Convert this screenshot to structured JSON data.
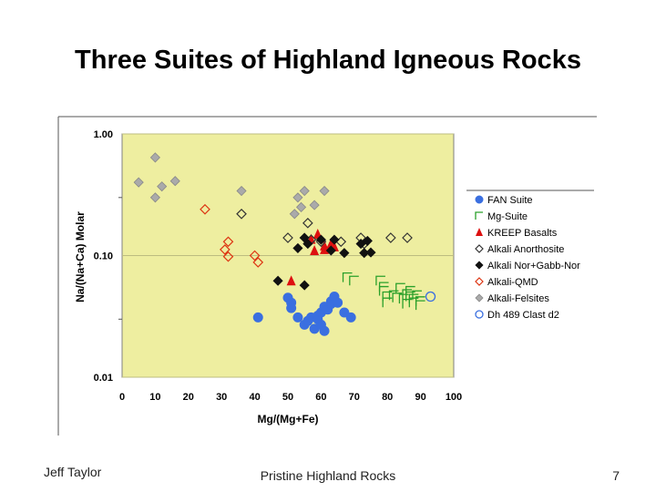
{
  "slide": {
    "title": "Three Suites of Highland Igneous Rocks",
    "footer_left": "Jeff Taylor",
    "footer_center": "Pristine Highland Rocks",
    "page_number": "7"
  },
  "chart_data": {
    "type": "scatter",
    "xlabel": "Mg/(Mg+Fe)",
    "ylabel": "Na/(Na+Ca) Molar",
    "xlim": [
      0,
      100
    ],
    "ylim": [
      0.01,
      1.0
    ],
    "yscale": "log",
    "x_ticks": [
      "0",
      "10",
      "20",
      "30",
      "40",
      "50",
      "60",
      "70",
      "80",
      "90",
      "100"
    ],
    "y_ticks": [
      {
        "value": 1.0,
        "label": "1.00"
      },
      {
        "value": 0.1,
        "label": "0.10"
      },
      {
        "value": 0.01,
        "label": "0.01"
      }
    ],
    "plot_background": "#eeeea0",
    "legend_position": "right",
    "series": [
      {
        "name": "FAN Suite",
        "marker": "circle-filled",
        "color": "#3a6fe0",
        "points": [
          [
            41,
            0.031
          ],
          [
            50,
            0.045
          ],
          [
            51,
            0.041
          ],
          [
            51,
            0.037
          ],
          [
            53,
            0.031
          ],
          [
            55,
            0.027
          ],
          [
            56,
            0.029
          ],
          [
            57,
            0.031
          ],
          [
            58,
            0.025
          ],
          [
            59,
            0.032
          ],
          [
            59,
            0.03
          ],
          [
            60,
            0.034
          ],
          [
            60,
            0.027
          ],
          [
            61,
            0.038
          ],
          [
            62,
            0.036
          ],
          [
            63,
            0.042
          ],
          [
            63,
            0.04
          ],
          [
            64,
            0.046
          ],
          [
            65,
            0.041
          ],
          [
            67,
            0.034
          ],
          [
            69,
            0.031
          ],
          [
            61,
            0.024
          ]
        ]
      },
      {
        "name": "Mg-Suite",
        "marker": "corner-open",
        "color": "#2aa02a",
        "points": [
          [
            68,
            0.066
          ],
          [
            70,
            0.062
          ],
          [
            78,
            0.062
          ],
          [
            79,
            0.055
          ],
          [
            79,
            0.051
          ],
          [
            80,
            0.046
          ],
          [
            80,
            0.041
          ],
          [
            82,
            0.047
          ],
          [
            83,
            0.045
          ],
          [
            84,
            0.054
          ],
          [
            85,
            0.044
          ],
          [
            86,
            0.048
          ],
          [
            86,
            0.04
          ],
          [
            87,
            0.051
          ],
          [
            87,
            0.046
          ],
          [
            88,
            0.044
          ],
          [
            88,
            0.041
          ],
          [
            89,
            0.047
          ],
          [
            90,
            0.042
          ],
          [
            90,
            0.039
          ]
        ]
      },
      {
        "name": "KREEP Basalts",
        "marker": "triangle-filled",
        "color": "#dd1010",
        "points": [
          [
            51,
            0.062
          ],
          [
            57,
            0.136
          ],
          [
            58,
            0.11
          ],
          [
            59,
            0.15
          ],
          [
            61,
            0.12
          ],
          [
            61,
            0.112
          ],
          [
            63,
            0.125
          ],
          [
            64,
            0.118
          ]
        ]
      },
      {
        "name": "Alkali Anorthosite",
        "marker": "diamond-open",
        "color": "#333333",
        "points": [
          [
            36,
            0.22
          ],
          [
            50,
            0.14
          ],
          [
            56,
            0.185
          ],
          [
            57,
            0.135
          ],
          [
            60,
            0.13
          ],
          [
            66,
            0.13
          ],
          [
            72,
            0.14
          ],
          [
            73,
            0.125
          ],
          [
            81,
            0.14
          ],
          [
            86,
            0.14
          ]
        ]
      },
      {
        "name": "Alkali Nor+Gabb-Nor",
        "marker": "diamond-filled",
        "color": "#111111",
        "points": [
          [
            47,
            0.062
          ],
          [
            53,
            0.115
          ],
          [
            55,
            0.14
          ],
          [
            56,
            0.125
          ],
          [
            60,
            0.135
          ],
          [
            63,
            0.11
          ],
          [
            64,
            0.135
          ],
          [
            67,
            0.105
          ],
          [
            72,
            0.125
          ],
          [
            73,
            0.105
          ],
          [
            74,
            0.132
          ],
          [
            75,
            0.106
          ],
          [
            55,
            0.057
          ]
        ]
      },
      {
        "name": "Alkali-QMD",
        "marker": "diamond-open",
        "color": "#dd3311",
        "points": [
          [
            25,
            0.24
          ],
          [
            32,
            0.13
          ],
          [
            31,
            0.112
          ],
          [
            32,
            0.098
          ],
          [
            40,
            0.1
          ],
          [
            41,
            0.088
          ]
        ]
      },
      {
        "name": "Alkali-Felsites",
        "marker": "diamond-filled",
        "color": "#aaaaaa",
        "points": [
          [
            5,
            0.4
          ],
          [
            10,
            0.64
          ],
          [
            10,
            0.3
          ],
          [
            12,
            0.37
          ],
          [
            16,
            0.41
          ],
          [
            36,
            0.34
          ],
          [
            52,
            0.22
          ],
          [
            53,
            0.3
          ],
          [
            54,
            0.25
          ],
          [
            55,
            0.34
          ],
          [
            58,
            0.26
          ],
          [
            61,
            0.34
          ]
        ]
      },
      {
        "name": "Dh 489 Clast d2",
        "marker": "circle-open",
        "color": "#3a6fe0",
        "points": [
          [
            93,
            0.046
          ]
        ]
      }
    ]
  }
}
